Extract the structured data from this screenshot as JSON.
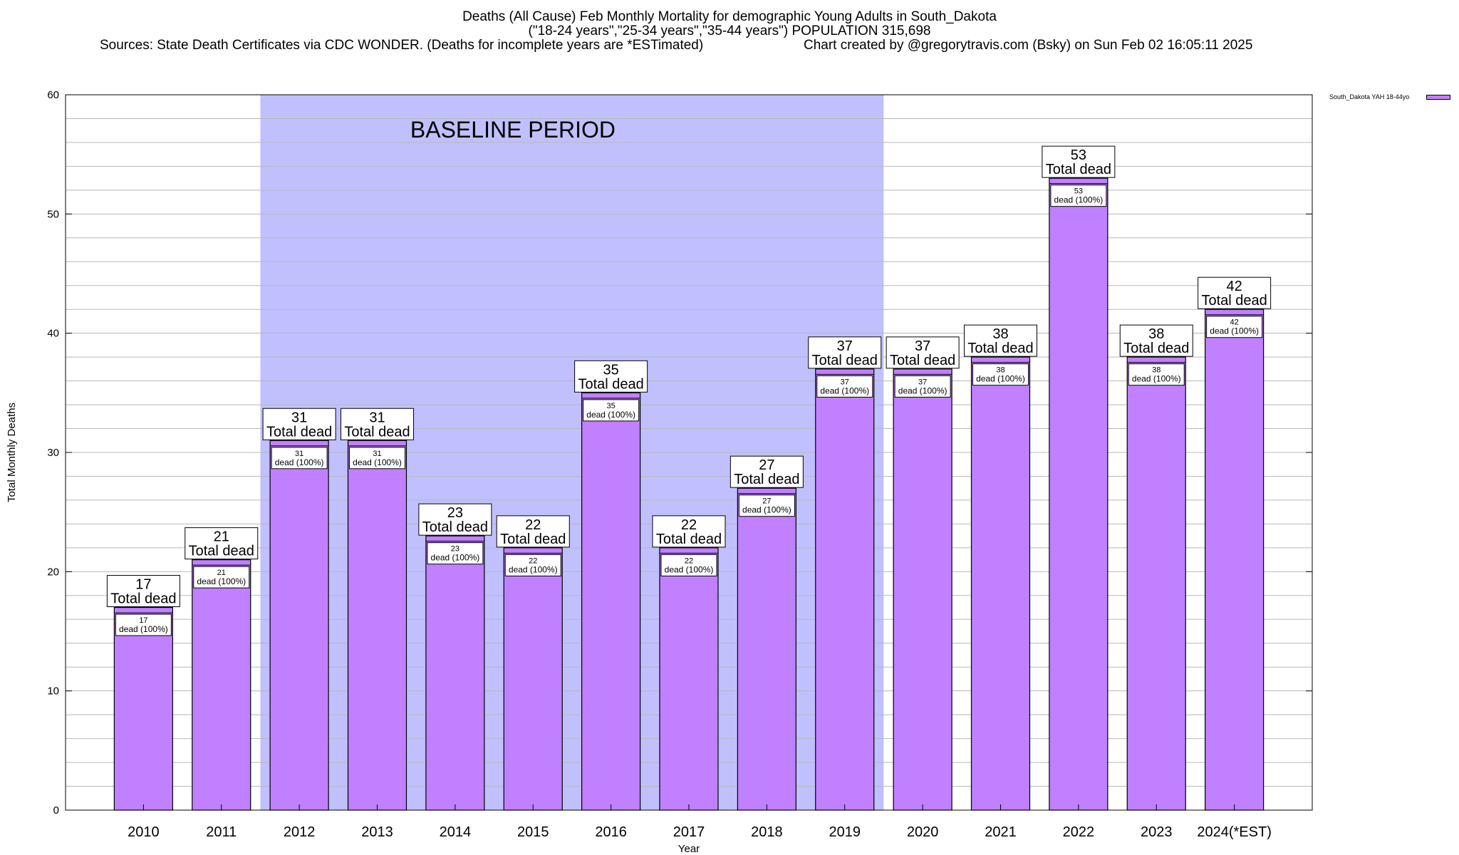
{
  "header": {
    "title_line1": "Deaths (All Cause) Feb Monthly Mortality for demographic Young Adults in South_Dakota",
    "title_line2": "(\"18-24 years\",\"25-34 years\",\"35-44 years\") POPULATION 315,698",
    "sources": "Sources: State Death Certificates via CDC WONDER. (Deaths for incomplete years are *ESTimated)",
    "credit": "Chart created by @gregorytravis.com (Bsky) on Sun Feb 02 16:05:11 2025"
  },
  "chart_data": {
    "type": "bar",
    "xlabel": "Year",
    "ylabel": "Total Monthly Deaths",
    "ylim": [
      0,
      60
    ],
    "yticks": [
      0,
      10,
      20,
      30,
      40,
      50,
      60
    ],
    "grid": true,
    "legend_position": "top-right",
    "categories": [
      "2010",
      "2011",
      "2012",
      "2013",
      "2014",
      "2015",
      "2016",
      "2017",
      "2018",
      "2019",
      "2020",
      "2021",
      "2022",
      "2023",
      "2024(*EST)"
    ],
    "series": [
      {
        "name": "South_Dakota YAH 18-44yo",
        "values": [
          17,
          21,
          31,
          31,
          23,
          22,
          35,
          22,
          27,
          37,
          37,
          38,
          53,
          38,
          42
        ]
      }
    ],
    "top_label_suffix": "Total dead",
    "inner_label_suffix": "dead (100%)",
    "baseline": {
      "label": "BASELINE PERIOD",
      "from": "2012",
      "to": "2019"
    },
    "colors": {
      "bar": "#c080ff",
      "baseline": "#c0c0ff",
      "grid": "#b8b8b8"
    }
  }
}
